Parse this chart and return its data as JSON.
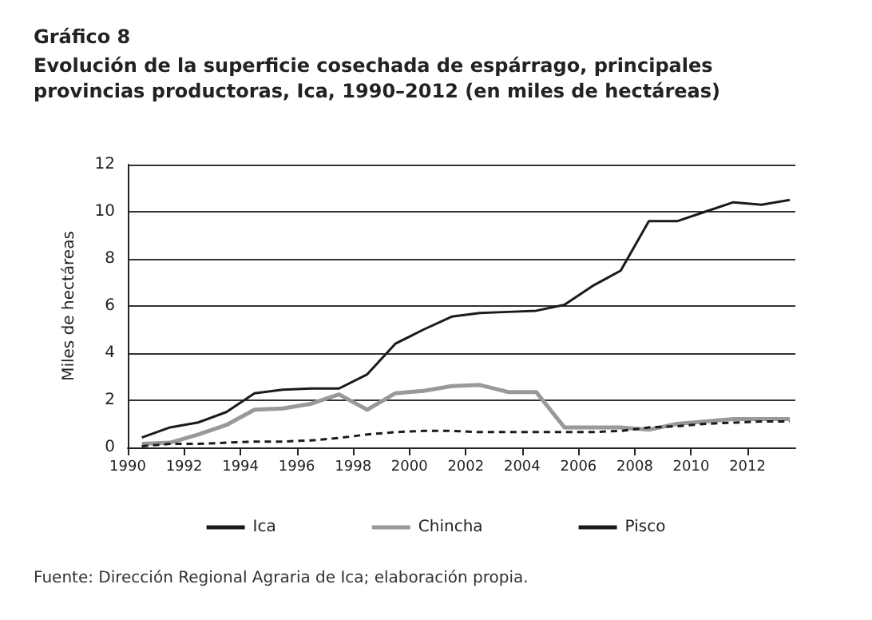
{
  "chart_data": {
    "type": "line",
    "title": "Gráfico 8",
    "subtitle": "Evolución de la superficie cosechada de espárrago, principales provincias productoras, Ica, 1990–2012 (en miles de hectáreas)",
    "ylabel": "Miles de hectáreas",
    "x": [
      1990.5,
      1991.5,
      1992.5,
      1993.5,
      1994.5,
      1995.5,
      1996.5,
      1997.5,
      1998.5,
      1999.5,
      2000.5,
      2001.5,
      2002.5,
      2003.5,
      2004.5,
      2005.5,
      2006.5,
      2007.5,
      2008.5,
      2009.5,
      2010.5,
      2011.5,
      2012.5,
      2013.5
    ],
    "xlim": [
      1990,
      2013.7
    ],
    "xticks": [
      1990,
      1992,
      1994,
      1996,
      1998,
      2000,
      2002,
      2004,
      2006,
      2008,
      2010,
      2012
    ],
    "ylim": [
      0,
      12
    ],
    "yticks": [
      0,
      2,
      4,
      6,
      8,
      10,
      12
    ],
    "series": [
      {
        "name": "Ica",
        "color": "#1a1a1a",
        "line_style": "solid",
        "values": [
          0.42,
          0.85,
          1.06,
          1.5,
          2.3,
          2.45,
          2.5,
          2.5,
          3.1,
          4.4,
          5.0,
          5.55,
          5.7,
          5.75,
          5.8,
          6.05,
          6.85,
          7.5,
          9.6,
          9.6,
          10.0,
          10.4,
          10.3,
          10.5
        ]
      },
      {
        "name": "Chincha",
        "color": "#999999",
        "line_style": "solid",
        "values": [
          0.15,
          0.2,
          0.55,
          0.95,
          1.6,
          1.65,
          1.85,
          2.25,
          1.6,
          2.3,
          2.4,
          2.6,
          2.65,
          2.35,
          2.35,
          0.85,
          0.85,
          0.85,
          0.75,
          1.0,
          1.1,
          1.2,
          1.2,
          1.2
        ]
      },
      {
        "name": "Pisco",
        "color": "#1a1a1a",
        "line_style": "dashed",
        "values": [
          0.05,
          0.15,
          0.15,
          0.2,
          0.25,
          0.25,
          0.3,
          0.4,
          0.55,
          0.65,
          0.7,
          0.7,
          0.65,
          0.65,
          0.65,
          0.65,
          0.65,
          0.7,
          0.85,
          0.9,
          1.0,
          1.05,
          1.1,
          1.1
        ]
      }
    ],
    "grid": "y",
    "legend": "bottom",
    "marker": "none",
    "annotations": [
      "Fuente: Dirección Regional Agraria de Ica; elaboración propia."
    ]
  }
}
